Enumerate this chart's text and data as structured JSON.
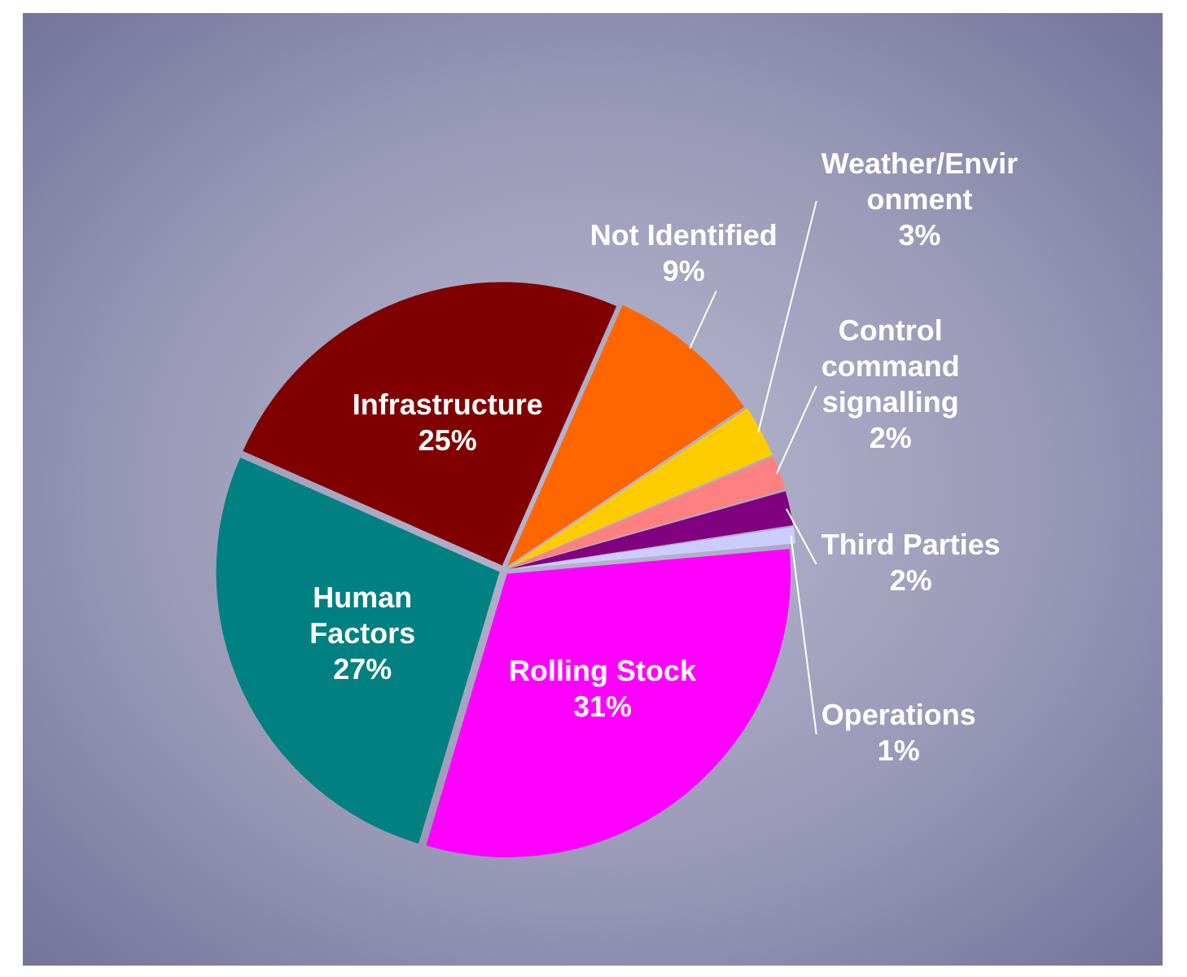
{
  "chart_data": {
    "type": "pie",
    "categories": [
      "Rolling Stock",
      "Human Factors",
      "Infrastructure",
      "Not Identified",
      "Weather/Environment",
      "Control command signalling",
      "Third Parties",
      "Operations"
    ],
    "values": [
      31,
      27,
      25,
      9,
      3,
      2,
      2,
      1
    ],
    "colors": [
      "#ff00ff",
      "#008080",
      "#800000",
      "#ff6600",
      "#ffcc00",
      "#ff8080",
      "#800080",
      "#ccccff"
    ],
    "value_labels": [
      "31%",
      "27%",
      "25%",
      "9%",
      "3%",
      "2%",
      "2%",
      "1%"
    ],
    "legend": false
  }
}
